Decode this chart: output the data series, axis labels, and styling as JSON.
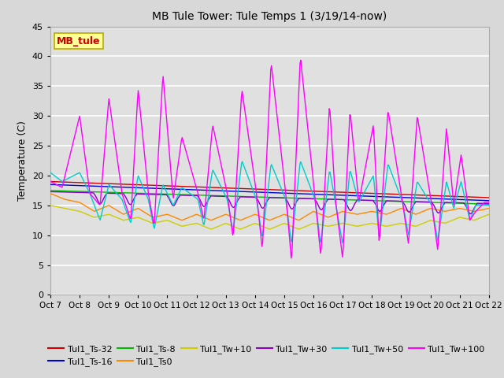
{
  "title": "MB Tule Tower: Tule Temps 1 (3/19/14-now)",
  "ylabel": "Temperature (C)",
  "ylim": [
    0,
    45
  ],
  "yticks": [
    0,
    5,
    10,
    15,
    20,
    25,
    30,
    35,
    40,
    45
  ],
  "xtick_labels": [
    "Oct 7",
    "Oct 8",
    "Oct 9",
    "Oct 10",
    "Oct 11",
    "Oct 12",
    "Oct 13",
    "Oct 14",
    "Oct 15",
    "Oct 16",
    "Oct 17",
    "Oct 18",
    "Oct 19",
    "Oct 20",
    "Oct 21",
    "Oct 22"
  ],
  "fig_bg": "#d8d8d8",
  "plot_bg": "#e0e0e0",
  "grid_color": "#ffffff",
  "series": [
    {
      "label": "Tul1_Ts-32",
      "color": "#cc0000"
    },
    {
      "label": "Tul1_Ts-16",
      "color": "#0000cc"
    },
    {
      "label": "Tul1_Ts-8",
      "color": "#00bb00"
    },
    {
      "label": "Tul1_Ts0",
      "color": "#ff8800"
    },
    {
      "label": "Tul1_Tw+10",
      "color": "#cccc00"
    },
    {
      "label": "Tul1_Tw+30",
      "color": "#8800cc"
    },
    {
      "label": "Tul1_Tw+50",
      "color": "#00cccc"
    },
    {
      "label": "Tul1_Tw+100",
      "color": "#ff00ff"
    }
  ],
  "station_label": "MB_tule",
  "station_label_color": "#cc0000",
  "station_box_facecolor": "#ffff99",
  "station_box_edgecolor": "#bbaa00",
  "magenta_key_x": [
    0,
    0.4,
    1.0,
    1.35,
    1.7,
    2.0,
    2.45,
    2.75,
    3.0,
    3.35,
    3.55,
    3.85,
    4.2,
    4.5,
    5.05,
    5.25,
    5.55,
    6.05,
    6.25,
    6.55,
    7.05,
    7.25,
    7.55,
    8.05,
    8.25,
    8.55,
    9.05,
    9.25,
    9.55,
    9.75,
    10.0,
    10.25,
    10.55,
    11.05,
    11.25,
    11.55,
    12.05,
    12.25,
    12.55,
    13.05,
    13.25,
    13.55,
    13.8,
    14.05,
    14.35,
    14.55,
    14.85,
    15.0
  ],
  "magenta_key_y": [
    19,
    18,
    30,
    17,
    15,
    33,
    17,
    12.5,
    34.5,
    17,
    11.5,
    37,
    16,
    26.5,
    17,
    12.5,
    28.5,
    17,
    9.5,
    34.5,
    17,
    7.5,
    39,
    17,
    5.5,
    40,
    16.5,
    6.5,
    32,
    16,
    6.0,
    31,
    15.5,
    28.5,
    8.5,
    31,
    15.5,
    8.5,
    30,
    15,
    7.5,
    28,
    15,
    23.5,
    12.5,
    14,
    15.5,
    15.5
  ],
  "cyan_key_x": [
    0,
    0.4,
    1.0,
    1.35,
    1.7,
    2.0,
    2.45,
    2.75,
    3.0,
    3.35,
    3.55,
    3.85,
    4.2,
    4.5,
    5.05,
    5.25,
    5.55,
    6.05,
    6.25,
    6.55,
    7.05,
    7.25,
    7.55,
    8.05,
    8.25,
    8.55,
    9.05,
    9.25,
    9.55,
    9.75,
    10.0,
    10.25,
    10.55,
    11.05,
    11.25,
    11.55,
    12.05,
    12.25,
    12.55,
    13.05,
    13.25,
    13.55,
    13.8,
    14.05,
    14.35,
    14.55,
    14.85,
    15.0
  ],
  "cyan_key_y": [
    20.5,
    19,
    20.5,
    17,
    12.5,
    18.5,
    16,
    12,
    20,
    16,
    11,
    18.5,
    15,
    18,
    16,
    11.5,
    21,
    16,
    10.5,
    22.5,
    16,
    9.5,
    22,
    16,
    8.5,
    22.5,
    16,
    8.5,
    21,
    15.5,
    8.5,
    21,
    15.5,
    20,
    9.5,
    22,
    15.5,
    10,
    19,
    15,
    9,
    19,
    14.5,
    19,
    12.5,
    15,
    15,
    15
  ],
  "yellow_key_x": [
    0,
    0.5,
    1.0,
    1.5,
    2.0,
    2.5,
    3.0,
    3.5,
    4.0,
    4.5,
    5.0,
    5.5,
    6.0,
    6.5,
    7.0,
    7.5,
    8.0,
    8.5,
    9.0,
    9.5,
    10.0,
    10.5,
    11.0,
    11.5,
    12.0,
    12.5,
    13.0,
    13.5,
    14.0,
    14.5,
    15.0
  ],
  "yellow_key_y": [
    15.0,
    14.5,
    14.0,
    13.0,
    13.5,
    12.5,
    13.0,
    12.0,
    12.5,
    11.5,
    12.0,
    11.0,
    12.0,
    11.0,
    12.0,
    11.0,
    12.0,
    11.0,
    12.0,
    11.5,
    12.0,
    11.5,
    12.0,
    11.5,
    12.0,
    11.5,
    12.5,
    12.0,
    13.0,
    12.5,
    13.5
  ],
  "orange_key_x": [
    0,
    0.5,
    1.0,
    1.5,
    2.0,
    2.5,
    3.0,
    3.5,
    4.0,
    4.5,
    5.0,
    5.5,
    6.0,
    6.5,
    7.0,
    7.5,
    8.0,
    8.5,
    9.0,
    9.5,
    10.0,
    10.5,
    11.0,
    11.5,
    12.0,
    12.5,
    13.0,
    13.5,
    14.0,
    14.5,
    15.0
  ],
  "orange_key_y": [
    17.0,
    16.0,
    15.5,
    14.0,
    15.0,
    13.5,
    14.5,
    13.0,
    13.5,
    12.5,
    13.5,
    12.5,
    13.5,
    12.5,
    13.5,
    12.5,
    13.5,
    12.5,
    14.0,
    13.0,
    14.0,
    13.5,
    14.0,
    13.5,
    14.5,
    13.5,
    14.5,
    14.0,
    14.5,
    14.0,
    14.5
  ]
}
